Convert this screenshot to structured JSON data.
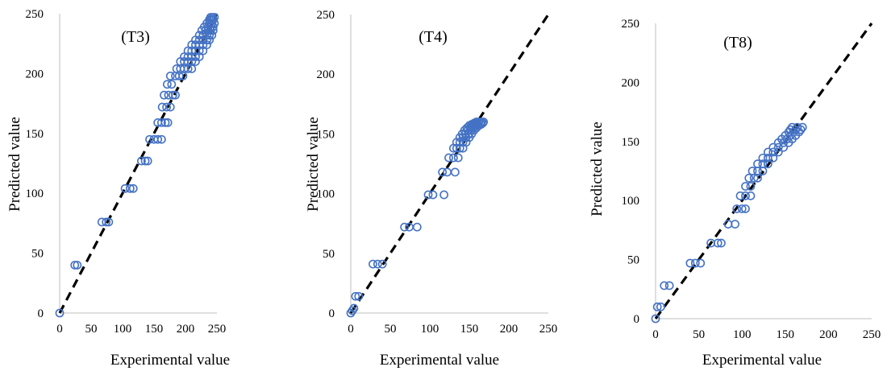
{
  "chart_data": [
    {
      "type": "scatter",
      "title": "(T3)",
      "xlabel": "Experimental value",
      "ylabel": "Predicted value",
      "xlim": [
        0,
        250
      ],
      "ylim": [
        0,
        250
      ],
      "xticks": [
        "0",
        "50",
        "100",
        "150",
        "200",
        "250"
      ],
      "yticks": [
        "0",
        "50",
        "100",
        "150",
        "200",
        "250"
      ],
      "grid": false,
      "reference_line": [
        [
          0,
          0
        ],
        [
          250,
          250
        ]
      ],
      "series": [
        {
          "marker": "open-circle",
          "points": [
            [
              0,
              0
            ],
            [
              24,
              40
            ],
            [
              28,
              40
            ],
            [
              67,
              76
            ],
            [
              74,
              76
            ],
            [
              78,
              76
            ],
            [
              104,
              104
            ],
            [
              112,
              104
            ],
            [
              117,
              104
            ],
            [
              130,
              127
            ],
            [
              136,
              127
            ],
            [
              140,
              127
            ],
            [
              143,
              145
            ],
            [
              150,
              145
            ],
            [
              156,
              145
            ],
            [
              162,
              145
            ],
            [
              156,
              159
            ],
            [
              162,
              159
            ],
            [
              168,
              159
            ],
            [
              172,
              159
            ],
            [
              163,
              172
            ],
            [
              170,
              172
            ],
            [
              176,
              172
            ],
            [
              166,
              182
            ],
            [
              173,
              182
            ],
            [
              180,
              182
            ],
            [
              184,
              182
            ],
            [
              171,
              191
            ],
            [
              178,
              191
            ],
            [
              176,
              198
            ],
            [
              184,
              198
            ],
            [
              190,
              198
            ],
            [
              196,
              198
            ],
            [
              186,
              204
            ],
            [
              192,
              204
            ],
            [
              198,
              204
            ],
            [
              204,
              204
            ],
            [
              210,
              204
            ],
            [
              192,
              210
            ],
            [
              198,
              210
            ],
            [
              204,
              210
            ],
            [
              210,
              210
            ],
            [
              216,
              210
            ],
            [
              198,
              214
            ],
            [
              204,
              214
            ],
            [
              210,
              214
            ],
            [
              216,
              214
            ],
            [
              222,
              214
            ],
            [
              204,
              219
            ],
            [
              210,
              219
            ],
            [
              216,
              219
            ],
            [
              222,
              219
            ],
            [
              228,
              219
            ],
            [
              210,
              224
            ],
            [
              216,
              224
            ],
            [
              222,
              224
            ],
            [
              228,
              224
            ],
            [
              234,
              224
            ],
            [
              216,
              228
            ],
            [
              222,
              228
            ],
            [
              228,
              228
            ],
            [
              234,
              228
            ],
            [
              238,
              228
            ],
            [
              222,
              232
            ],
            [
              228,
              232
            ],
            [
              234,
              232
            ],
            [
              238,
              232
            ],
            [
              242,
              232
            ],
            [
              226,
              236
            ],
            [
              232,
              236
            ],
            [
              236,
              236
            ],
            [
              240,
              236
            ],
            [
              244,
              236
            ],
            [
              230,
              239
            ],
            [
              236,
              239
            ],
            [
              240,
              239
            ],
            [
              244,
              239
            ],
            [
              234,
              242
            ],
            [
              238,
              242
            ],
            [
              242,
              242
            ],
            [
              246,
              242
            ],
            [
              238,
              245
            ],
            [
              241,
              245
            ],
            [
              244,
              245
            ],
            [
              240,
              247
            ],
            [
              243,
              247
            ],
            [
              246,
              247
            ]
          ]
        }
      ]
    },
    {
      "type": "scatter",
      "title": "(T4)",
      "xlabel": "Experimental value",
      "ylabel": "Predicted value",
      "xlim": [
        0,
        250
      ],
      "ylim": [
        0,
        250
      ],
      "xticks": [
        "0",
        "50",
        "100",
        "150",
        "200",
        "250"
      ],
      "yticks": [
        "0",
        "50",
        "100",
        "150",
        "200",
        "250"
      ],
      "grid": false,
      "reference_line": [
        [
          0,
          0
        ],
        [
          250,
          250
        ]
      ],
      "series": [
        {
          "marker": "open-circle",
          "points": [
            [
              0,
              0
            ],
            [
              2,
              2
            ],
            [
              4,
              4
            ],
            [
              6,
              14
            ],
            [
              10,
              14
            ],
            [
              28,
              41
            ],
            [
              34,
              41
            ],
            [
              40,
              41
            ],
            [
              68,
              72
            ],
            [
              74,
              72
            ],
            [
              84,
              72
            ],
            [
              98,
              99
            ],
            [
              104,
              99
            ],
            [
              118,
              99
            ],
            [
              116,
              118
            ],
            [
              122,
              118
            ],
            [
              132,
              118
            ],
            [
              124,
              130
            ],
            [
              130,
              130
            ],
            [
              136,
              130
            ],
            [
              130,
              138
            ],
            [
              134,
              138
            ],
            [
              138,
              138
            ],
            [
              142,
              138
            ],
            [
              134,
              143
            ],
            [
              138,
              143
            ],
            [
              142,
              143
            ],
            [
              146,
              143
            ],
            [
              138,
              147
            ],
            [
              142,
              147
            ],
            [
              146,
              147
            ],
            [
              150,
              147
            ],
            [
              141,
              150
            ],
            [
              145,
              150
            ],
            [
              149,
              150
            ],
            [
              153,
              150
            ],
            [
              144,
              153
            ],
            [
              148,
              153
            ],
            [
              152,
              153
            ],
            [
              156,
              153
            ],
            [
              147,
              155
            ],
            [
              151,
              155
            ],
            [
              155,
              155
            ],
            [
              159,
              155
            ],
            [
              150,
              157
            ],
            [
              154,
              157
            ],
            [
              158,
              157
            ],
            [
              162,
              157
            ],
            [
              153,
              158
            ],
            [
              157,
              158
            ],
            [
              161,
              158
            ],
            [
              165,
              158
            ],
            [
              156,
              159
            ],
            [
              160,
              159
            ],
            [
              164,
              159
            ],
            [
              167,
              159
            ],
            [
              159,
              160
            ],
            [
              162,
              160
            ],
            [
              165,
              160
            ],
            [
              168,
              160
            ]
          ]
        }
      ]
    },
    {
      "type": "scatter",
      "title": "(T8)",
      "xlabel": "Experimental value",
      "ylabel": "Predicted value",
      "xlim": [
        0,
        250
      ],
      "ylim": [
        0,
        250
      ],
      "xticks": [
        "0",
        "50",
        "100",
        "150",
        "200",
        "250"
      ],
      "yticks": [
        "0",
        "50",
        "100",
        "150",
        "200",
        "250"
      ],
      "grid": false,
      "reference_line": [
        [
          0,
          0
        ],
        [
          250,
          250
        ]
      ],
      "series": [
        {
          "marker": "open-circle",
          "points": [
            [
              0,
              0
            ],
            [
              2,
              10
            ],
            [
              6,
              10
            ],
            [
              10,
              28
            ],
            [
              16,
              28
            ],
            [
              40,
              47
            ],
            [
              46,
              47
            ],
            [
              52,
              47
            ],
            [
              64,
              64
            ],
            [
              72,
              64
            ],
            [
              76,
              64
            ],
            [
              84,
              80
            ],
            [
              92,
              80
            ],
            [
              94,
              93
            ],
            [
              100,
              93
            ],
            [
              104,
              93
            ],
            [
              98,
              104
            ],
            [
              104,
              104
            ],
            [
              110,
              104
            ],
            [
              104,
              112
            ],
            [
              110,
              112
            ],
            [
              108,
              119
            ],
            [
              114,
              119
            ],
            [
              118,
              119
            ],
            [
              112,
              125
            ],
            [
              118,
              125
            ],
            [
              124,
              125
            ],
            [
              118,
              131
            ],
            [
              124,
              131
            ],
            [
              130,
              131
            ],
            [
              124,
              136
            ],
            [
              130,
              136
            ],
            [
              136,
              136
            ],
            [
              130,
              141
            ],
            [
              136,
              141
            ],
            [
              142,
              141
            ],
            [
              136,
              145
            ],
            [
              142,
              145
            ],
            [
              148,
              145
            ],
            [
              142,
              149
            ],
            [
              148,
              149
            ],
            [
              154,
              149
            ],
            [
              146,
              152
            ],
            [
              152,
              152
            ],
            [
              158,
              152
            ],
            [
              150,
              155
            ],
            [
              156,
              155
            ],
            [
              162,
              155
            ],
            [
              154,
              158
            ],
            [
              160,
              158
            ],
            [
              166,
              158
            ],
            [
              156,
              160
            ],
            [
              162,
              160
            ],
            [
              168,
              160
            ],
            [
              158,
              162
            ],
            [
              164,
              162
            ],
            [
              170,
              162
            ]
          ]
        }
      ]
    }
  ],
  "colors": {
    "marker": "#4472c4",
    "reference_line": "#000000"
  }
}
